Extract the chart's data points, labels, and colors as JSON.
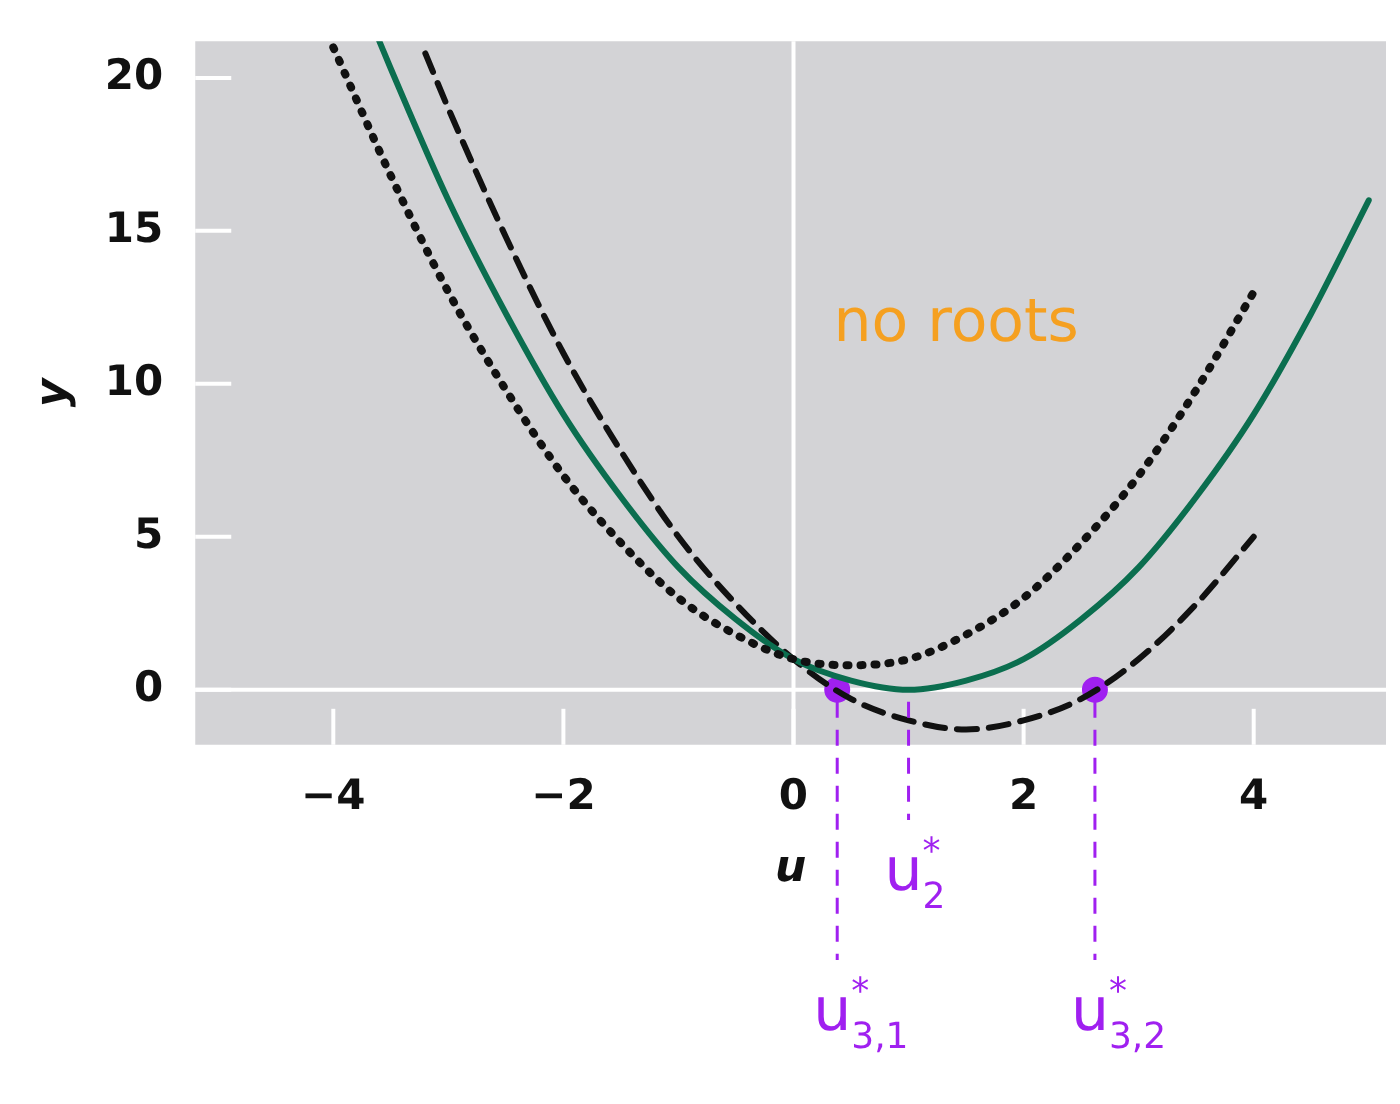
{
  "chart_data": {
    "type": "line",
    "xlabel": "u",
    "ylabel": "y",
    "xlim": [
      -5.2,
      5.15
    ],
    "ylim": [
      -1.8,
      21.2
    ],
    "xticks": [
      -4,
      -2,
      0,
      2,
      4
    ],
    "yticks": [
      0,
      5,
      10,
      15,
      20
    ],
    "legend": false,
    "marker": "none",
    "series": [
      {
        "color": "#111111",
        "line_style": "dotted",
        "x": [
          -4,
          -3.5,
          -3,
          -2.5,
          -2,
          -1.5,
          -1,
          -0.5,
          0,
          0.5,
          1,
          1.5,
          2,
          2.5,
          3,
          3.5,
          4
        ],
        "values": [
          21,
          16.8,
          13,
          9.8,
          7,
          4.8,
          3,
          1.8,
          1,
          0.8,
          1,
          1.8,
          3,
          4.8,
          7,
          9.8,
          13
        ]
      },
      {
        "color": "#0b6e4f",
        "line_style": "solid",
        "x": [
          -3.6,
          -3.5,
          -3,
          -2.5,
          -2,
          -1.5,
          -1,
          -0.5,
          0,
          0.5,
          1,
          1.5,
          2,
          2.5,
          3,
          3.5,
          4,
          4.5,
          5
        ],
        "values": [
          21.2,
          20.3,
          16,
          12.3,
          9,
          6.3,
          4,
          2.3,
          1,
          0.3,
          0,
          0.3,
          1,
          2.3,
          4,
          6.3,
          9,
          12.3,
          16
        ]
      },
      {
        "color": "#111111",
        "line_style": "dashed",
        "x": [
          -3.2,
          -3,
          -2.5,
          -2,
          -1.5,
          -1,
          -0.5,
          0,
          0.5,
          1,
          1.5,
          2,
          2.5,
          3,
          3.5,
          4
        ],
        "values": [
          20.8,
          19,
          14.8,
          11,
          7.8,
          5,
          2.8,
          1,
          -0.3,
          -1,
          -1.3,
          -1,
          -0.3,
          1,
          2.8,
          5
        ]
      },
      {
        "type": "scatter",
        "marker": "circle",
        "color": "#a020f0",
        "x": [
          0.38,
          2.62
        ],
        "values": [
          0,
          0
        ]
      }
    ],
    "annotations": [
      "no roots",
      {
        "text": "u$^{*}$$_{3,1}$",
        "x": 0.38,
        "y": 0
      },
      {
        "text": "u$^{*}$$_{2}$",
        "x": 1,
        "y": 0
      },
      {
        "text": "u$^{*}$$_{3,2}$",
        "x": 2.62,
        "y": 0
      }
    ]
  }
}
